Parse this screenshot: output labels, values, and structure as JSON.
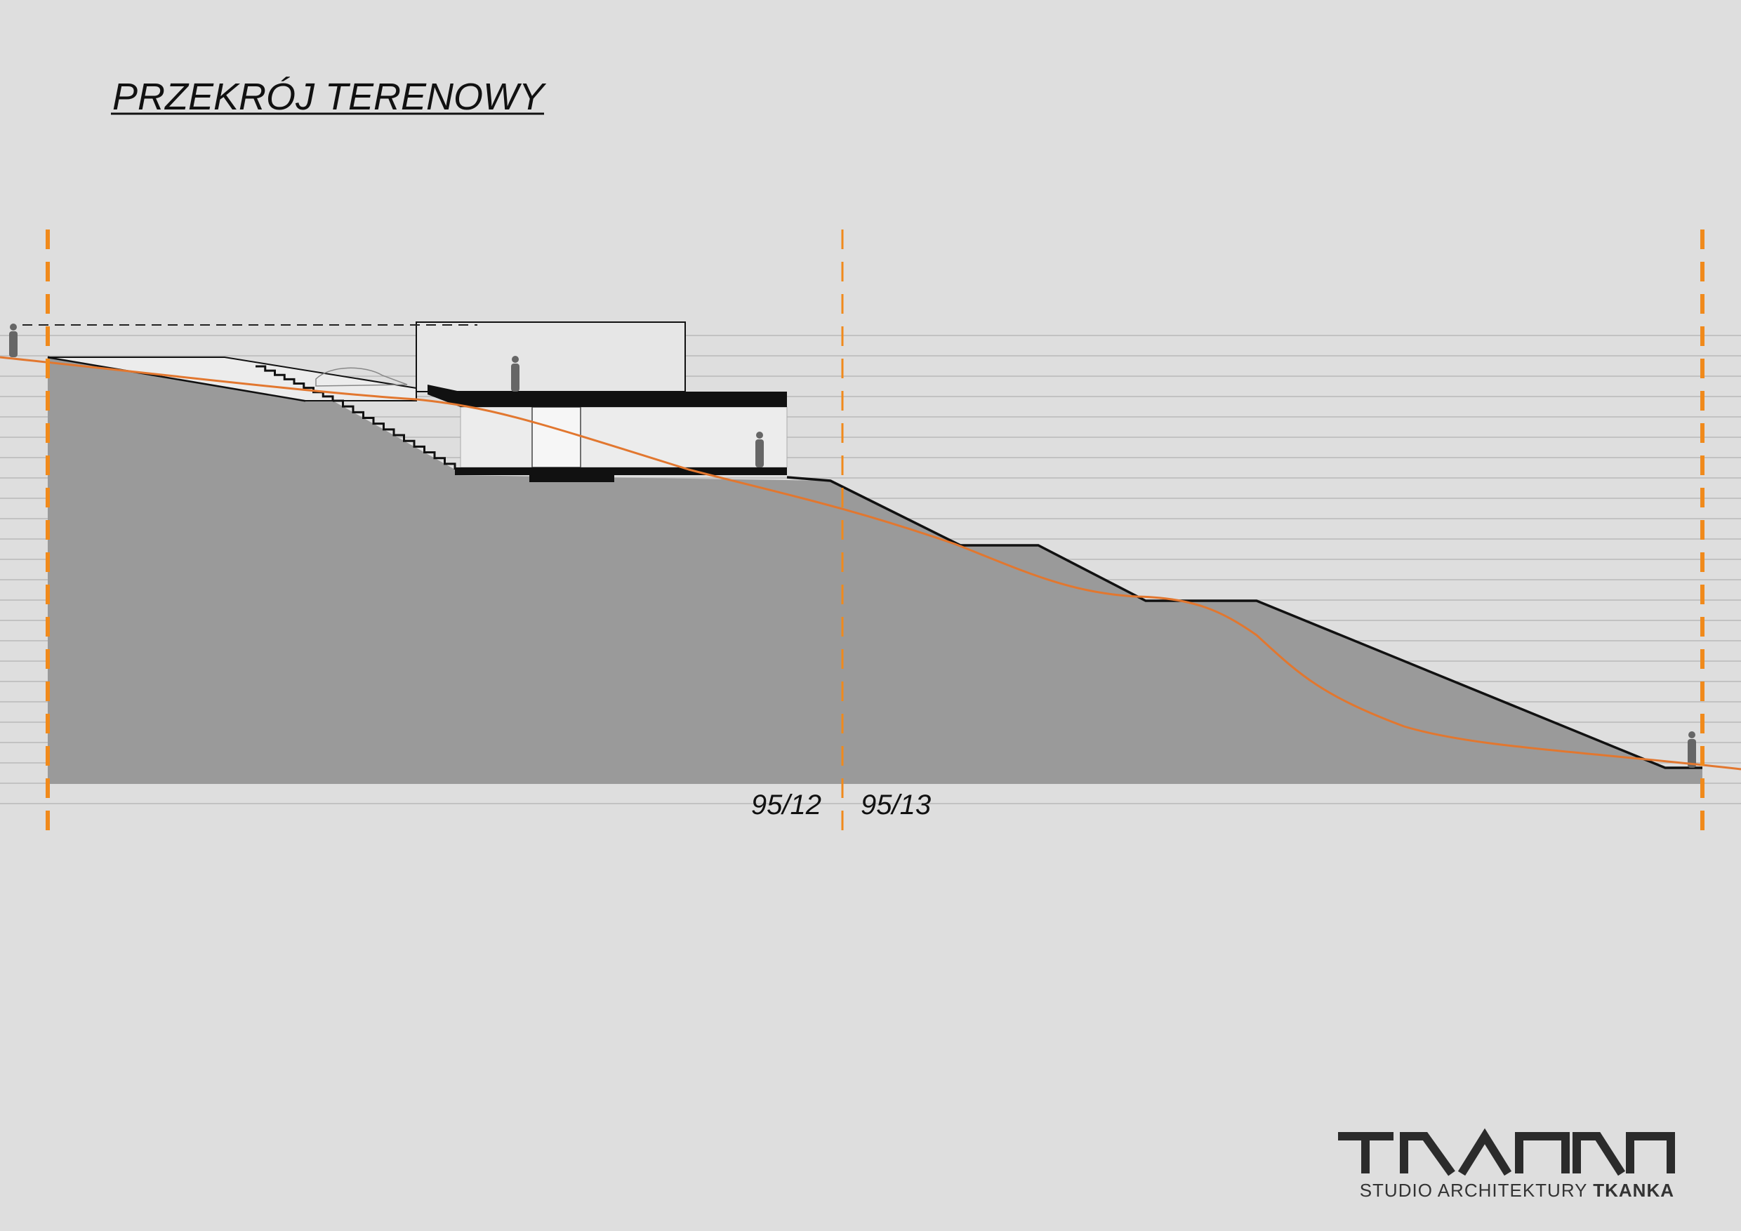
{
  "header": {
    "title": "PRZEKRÓJ TERENOWY"
  },
  "plots": [
    {
      "label": "95/12"
    },
    {
      "label": "95/13"
    }
  ],
  "footer": {
    "studio": "STUDIO ARCHITEKTURY",
    "name": "TKANKA"
  }
}
